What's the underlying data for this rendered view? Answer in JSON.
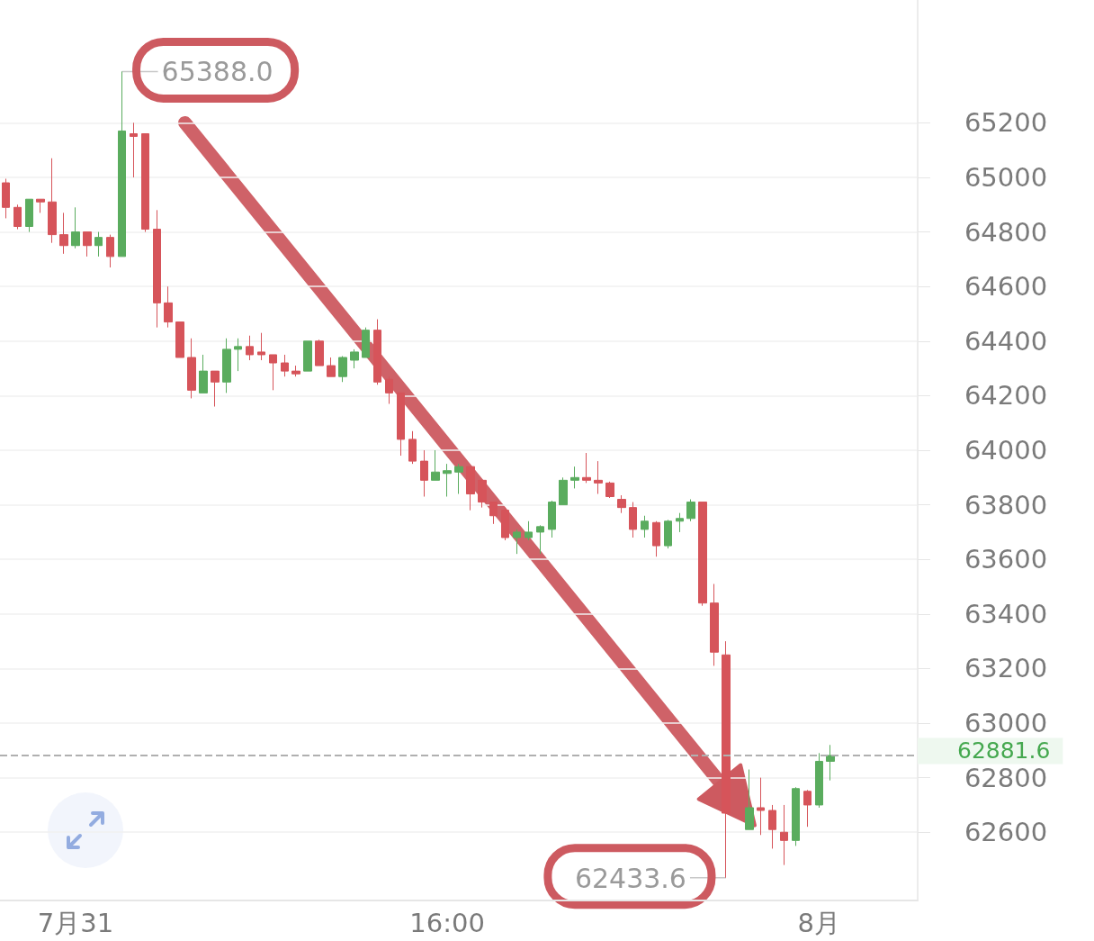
{
  "chart_data": {
    "type": "candlestick",
    "categories": [
      null,
      null,
      null,
      null,
      null,
      null,
      "7月31",
      null,
      null,
      null,
      null,
      null,
      null,
      null,
      null,
      null,
      null,
      null,
      null,
      null,
      null,
      null,
      null,
      null,
      null,
      null,
      null,
      null,
      null,
      null,
      null,
      null,
      null,
      null,
      null,
      null,
      null,
      null,
      "16:00",
      null,
      null,
      null,
      null,
      null,
      null,
      null,
      null,
      null,
      null,
      null,
      null,
      null,
      null,
      null,
      null,
      null,
      null,
      null,
      null,
      null,
      null,
      null,
      null,
      null,
      null,
      null,
      null,
      null,
      null,
      null,
      "8月",
      null
    ],
    "ohlc": [
      [
        64980,
        64995,
        64850,
        64890
      ],
      [
        64890,
        64900,
        64810,
        64820
      ],
      [
        64820,
        64920,
        64800,
        64920
      ],
      [
        64920,
        64920,
        64870,
        64910
      ],
      [
        64910,
        65070,
        64760,
        64790
      ],
      [
        64790,
        64870,
        64720,
        64750
      ],
      [
        64750,
        64890,
        64740,
        64800
      ],
      [
        64800,
        64800,
        64710,
        64750
      ],
      [
        64750,
        64800,
        64710,
        64780
      ],
      [
        64780,
        64790,
        64670,
        64710
      ],
      [
        64710,
        65388,
        64710,
        65170
      ],
      [
        65160,
        65200,
        65000,
        65150
      ],
      [
        65160,
        65160,
        64800,
        64810
      ],
      [
        64810,
        64880,
        64450,
        64540
      ],
      [
        64540,
        64600,
        64450,
        64470
      ],
      [
        64470,
        64470,
        64340,
        64340
      ],
      [
        64340,
        64410,
        64190,
        64220
      ],
      [
        64210,
        64350,
        64210,
        64290
      ],
      [
        64290,
        64290,
        64160,
        64250
      ],
      [
        64250,
        64410,
        64210,
        64370
      ],
      [
        64370,
        64410,
        64290,
        64380
      ],
      [
        64380,
        64420,
        64330,
        64350
      ],
      [
        64360,
        64430,
        64330,
        64350
      ],
      [
        64350,
        64350,
        64220,
        64320
      ],
      [
        64320,
        64350,
        64270,
        64290
      ],
      [
        64290,
        64310,
        64270,
        64280
      ],
      [
        64290,
        64400,
        64290,
        64400
      ],
      [
        64400,
        64405,
        64310,
        64310
      ],
      [
        64310,
        64340,
        64270,
        64270
      ],
      [
        64270,
        64345,
        64250,
        64340
      ],
      [
        64330,
        64370,
        64300,
        64360
      ],
      [
        64340,
        64450,
        64340,
        64440
      ],
      [
        64440,
        64480,
        64240,
        64250
      ],
      [
        64260,
        64270,
        64170,
        64210
      ],
      [
        64210,
        64210,
        63980,
        64040
      ],
      [
        64040,
        64070,
        63950,
        63960
      ],
      [
        63960,
        64000,
        63830,
        63890
      ],
      [
        63890,
        64000,
        63890,
        63920
      ],
      [
        63915,
        63950,
        63830,
        63925
      ],
      [
        63920,
        63950,
        63840,
        63940
      ],
      [
        63940,
        63940,
        63780,
        63840
      ],
      [
        63890,
        63890,
        63790,
        63810
      ],
      [
        63810,
        63810,
        63730,
        63760
      ],
      [
        63780,
        63790,
        63670,
        63680
      ],
      [
        63680,
        63710,
        63620,
        63700
      ],
      [
        63680,
        63740,
        63670,
        63700
      ],
      [
        63700,
        63725,
        63620,
        63720
      ],
      [
        63710,
        63815,
        63680,
        63810
      ],
      [
        63800,
        63900,
        63800,
        63890
      ],
      [
        63890,
        63940,
        63860,
        63900
      ],
      [
        63900,
        63990,
        63880,
        63890
      ],
      [
        63890,
        63960,
        63840,
        63880
      ],
      [
        63880,
        63885,
        63825,
        63830
      ],
      [
        63820,
        63835,
        63770,
        63790
      ],
      [
        63790,
        63810,
        63680,
        63710
      ],
      [
        63710,
        63760,
        63680,
        63740
      ],
      [
        63735,
        63740,
        63610,
        63650
      ],
      [
        63650,
        63745,
        63640,
        63740
      ],
      [
        63740,
        63770,
        63700,
        63750
      ],
      [
        63750,
        63820,
        63740,
        63810
      ],
      [
        63810,
        63810,
        63430,
        63440
      ],
      [
        63440,
        63510,
        63210,
        63260
      ],
      [
        63250,
        63300,
        62433.6,
        62670
      ],
      null,
      [
        62610,
        62830,
        62610,
        62690
      ],
      [
        62690,
        62800,
        62590,
        62680
      ],
      [
        62680,
        62700,
        62540,
        62610
      ],
      [
        62600,
        62700,
        62480,
        62570
      ],
      [
        62570,
        62765,
        62550,
        62760
      ],
      [
        62750,
        62755,
        62620,
        62700
      ],
      [
        62700,
        62890,
        62690,
        62860
      ],
      [
        62860,
        62920,
        62790,
        62881.6
      ]
    ],
    "colors": [
      "#d6545a",
      "#d6545a",
      "#5aac5e",
      "#d6545a",
      "#d6545a",
      "#d6545a",
      "#5aac5e",
      "#d6545a",
      "#5aac5e",
      "#d6545a",
      "#5aac5e",
      "#d6545a",
      "#d6545a",
      "#d6545a",
      "#d6545a",
      "#d6545a",
      "#d6545a",
      "#5aac5e",
      "#d6545a",
      "#5aac5e",
      "#5aac5e",
      "#d6545a",
      "#d6545a",
      "#d6545a",
      "#d6545a",
      "#d6545a",
      "#5aac5e",
      "#d6545a",
      "#d6545a",
      "#5aac5e",
      "#5aac5e",
      "#5aac5e",
      "#d6545a",
      "#d6545a",
      "#d6545a",
      "#d6545a",
      "#d6545a",
      "#5aac5e",
      "#5aac5e",
      "#5aac5e",
      "#d6545a",
      "#d6545a",
      "#d6545a",
      "#d6545a",
      "#5aac5e",
      "#5aac5e",
      "#5aac5e",
      "#5aac5e",
      "#5aac5e",
      "#5aac5e",
      "#d6545a",
      "#d6545a",
      "#d6545a",
      "#d6545a",
      "#d6545a",
      "#5aac5e",
      "#d6545a",
      "#5aac5e",
      "#5aac5e",
      "#5aac5e",
      "#d6545a",
      "#d6545a",
      "#d6545a",
      null,
      "#5aac5e",
      "#d6545a",
      "#d6545a",
      "#d6545a",
      "#5aac5e",
      "#d6545a",
      "#5aac5e",
      "#5aac5e"
    ],
    "ylim": [
      62350,
      65650
    ],
    "yticks": [
      62600,
      62800,
      63000,
      63200,
      63400,
      63600,
      63800,
      64000,
      64200,
      64400,
      64600,
      64800,
      65000,
      65200
    ],
    "grid": "y",
    "ref_lines": [
      {
        "axis": "y",
        "value": 62881.6,
        "label": "62881.6",
        "line_style": "dashed"
      }
    ],
    "annotations": [
      "65388.0",
      "62433.6"
    ]
  }
}
